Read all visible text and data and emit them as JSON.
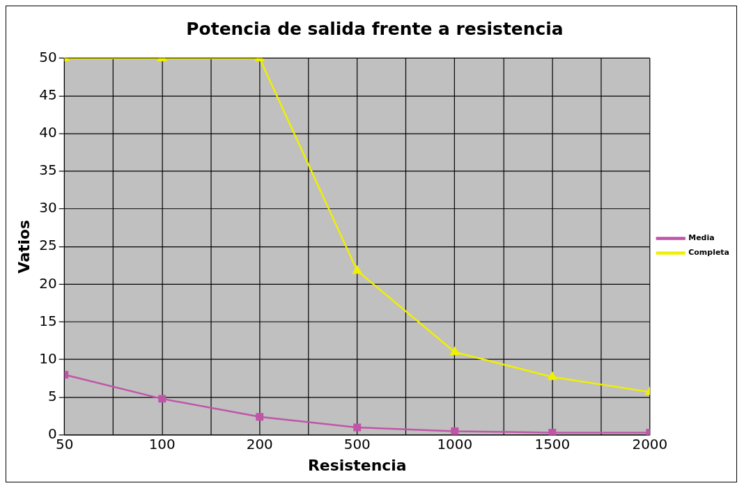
{
  "chart_data": {
    "type": "line",
    "title": "Potencia de salida frente a resistencia",
    "xlabel": "Resistencia",
    "ylabel": "Vatios",
    "categories": [
      "50",
      "100",
      "200",
      "500",
      "1000",
      "1500",
      "2000"
    ],
    "series": [
      {
        "name": "Media",
        "color": "#c055a8",
        "marker": "square",
        "values": [
          8,
          4.8,
          2.4,
          1.0,
          0.5,
          0.3,
          0.3
        ]
      },
      {
        "name": "Completa",
        "color": "#f0f000",
        "marker": "triangle",
        "values": [
          50,
          50,
          50,
          21.8,
          11,
          7.7,
          5.7
        ]
      }
    ],
    "ylim": [
      0,
      50
    ],
    "yticks": [
      0,
      5,
      10,
      15,
      20,
      25,
      30,
      35,
      40,
      45,
      50
    ],
    "grid": true,
    "legend": "right",
    "line_style": "solid"
  }
}
